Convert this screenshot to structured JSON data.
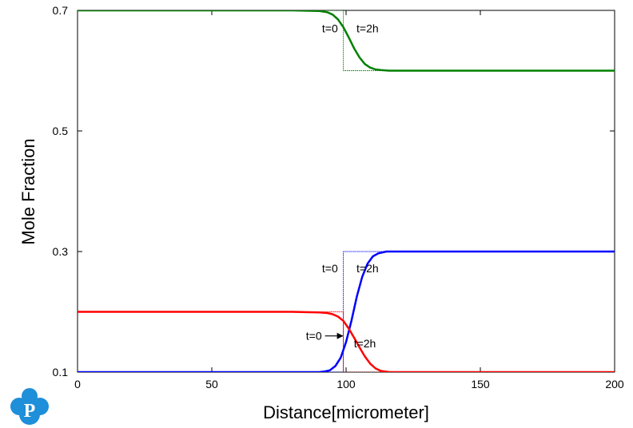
{
  "chart_data": {
    "type": "line",
    "title": "",
    "xlabel": "Distance[micrometer]",
    "ylabel": "Mole Fraction",
    "xlim": [
      0,
      200
    ],
    "ylim": [
      0.1,
      0.7
    ],
    "x_ticks": [
      0,
      50,
      100,
      150,
      200
    ],
    "y_ticks": [
      0.1,
      0.3,
      0.5,
      0.7
    ],
    "x_tick_labels": [
      "0",
      "50",
      "100",
      "150",
      "200"
    ],
    "y_tick_labels": [
      "0.1",
      "0.3",
      "0.5",
      "0.7"
    ],
    "grid": false,
    "legend": "none",
    "series": [
      {
        "color": "#008000",
        "initial": {
          "x": [
            0,
            99,
            99,
            200
          ],
          "y": [
            0.7,
            0.7,
            0.6,
            0.6
          ]
        },
        "final": {
          "x": [
            0,
            80,
            90,
            93,
            95,
            97,
            99,
            101,
            103,
            105,
            107,
            109,
            111,
            113,
            116,
            120,
            200
          ],
          "y": [
            0.7,
            0.7,
            0.699,
            0.697,
            0.693,
            0.685,
            0.672,
            0.655,
            0.637,
            0.622,
            0.611,
            0.605,
            0.602,
            0.601,
            0.6,
            0.6,
            0.6
          ]
        }
      },
      {
        "color": "#0000ff",
        "initial": {
          "x": [
            0,
            99,
            99,
            200
          ],
          "y": [
            0.1,
            0.1,
            0.3,
            0.3
          ]
        },
        "final": {
          "x": [
            0,
            80,
            90,
            92,
            94,
            96,
            98,
            100,
            102,
            104,
            106,
            108,
            110,
            112,
            115,
            120,
            200
          ],
          "y": [
            0.1,
            0.1,
            0.1,
            0.101,
            0.103,
            0.11,
            0.124,
            0.15,
            0.185,
            0.225,
            0.258,
            0.28,
            0.292,
            0.297,
            0.3,
            0.3,
            0.3
          ]
        }
      },
      {
        "color": "#ff0000",
        "initial": {
          "x": [
            0,
            99,
            99,
            200
          ],
          "y": [
            0.2,
            0.2,
            0.1,
            0.1
          ]
        },
        "final": {
          "x": [
            0,
            80,
            90,
            93,
            95,
            97,
            99,
            101,
            103,
            105,
            107,
            109,
            111,
            113,
            116,
            120,
            200
          ],
          "y": [
            0.2,
            0.2,
            0.199,
            0.198,
            0.196,
            0.192,
            0.185,
            0.172,
            0.157,
            0.141,
            0.126,
            0.114,
            0.106,
            0.102,
            0.1,
            0.1,
            0.1
          ]
        }
      }
    ],
    "annotations": [
      {
        "text": "t=0",
        "x": 94,
        "y": 0.67
      },
      {
        "text": "t=2h",
        "x": 108,
        "y": 0.67
      },
      {
        "text": "t=0",
        "x": 94,
        "y": 0.272
      },
      {
        "text": "t=2h",
        "x": 108,
        "y": 0.272
      },
      {
        "text": "t=0",
        "x": 88,
        "y": 0.16,
        "arrow_to": [
          99,
          0.16
        ]
      },
      {
        "text": "t=2h",
        "x": 107,
        "y": 0.148
      }
    ]
  },
  "logo": {
    "text": "P",
    "color": "#1e8fd8"
  }
}
